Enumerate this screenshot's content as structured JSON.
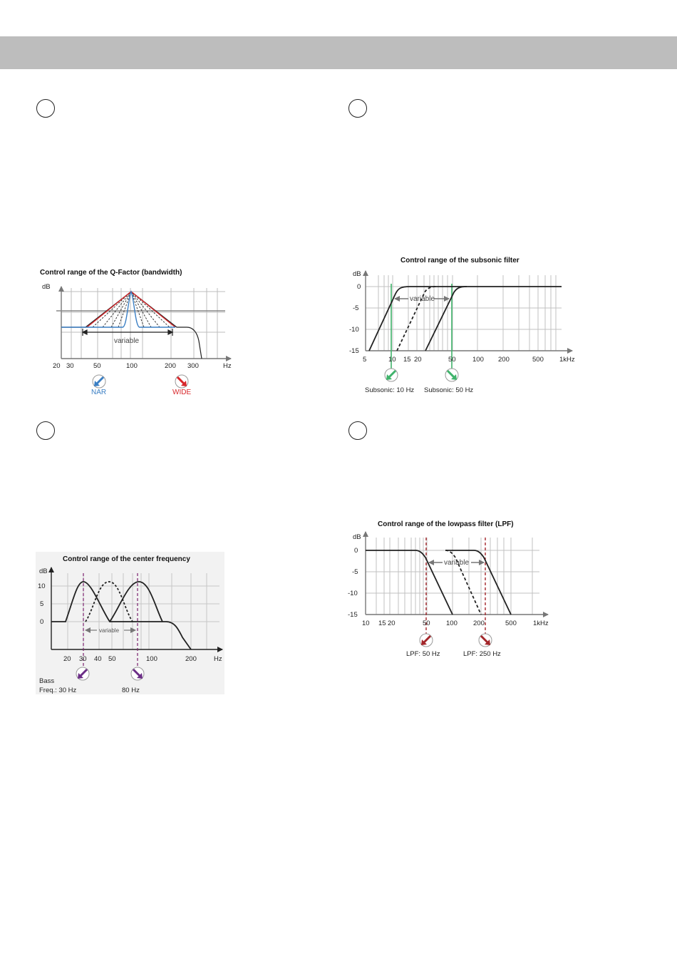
{
  "header": {
    "color": "#bdbdbd"
  },
  "steps": [
    "step-1",
    "step-2",
    "step-3",
    "step-4"
  ],
  "colors": {
    "accent_blue": "#3b7fc4",
    "accent_red": "#d8262a",
    "accent_green": "#3fb36b",
    "accent_purple": "#6b2d86",
    "accent_darkred": "#a3262a",
    "grid": "#b9b9b9"
  },
  "charts": {
    "qfactor": {
      "title": "Control range of the Q-Factor (bandwidth)",
      "ylabel": "dB",
      "unit": "Hz",
      "xticks": [
        "20",
        "30",
        "50",
        "100",
        "200",
        "300"
      ],
      "variable_label": "variable",
      "nar_label": "NAR",
      "wide_label": "WIDE"
    },
    "subsonic": {
      "title": "Control range of the subsonic filter",
      "ylabel": "dB",
      "yticks": [
        "0",
        "-5",
        "-10",
        "-15"
      ],
      "xticks": [
        "5",
        "10",
        "15",
        "20",
        "50",
        "100",
        "200",
        "500",
        "1kHz"
      ],
      "variable_label": "variable",
      "left_caption": "Subsonic: 10 Hz",
      "right_caption": "Subsonic: 50 Hz"
    },
    "center": {
      "title": "Control range of the center frequency",
      "ylabel": "dB",
      "yticks": [
        "10",
        "5",
        "0"
      ],
      "xticks": [
        "20",
        "30",
        "40",
        "50",
        "100",
        "200"
      ],
      "unit": "Hz",
      "variable_label": "variable",
      "caption_line1": "Bass",
      "caption_line2": "Freq.: 30 Hz",
      "right_caption": "80 Hz"
    },
    "lpf": {
      "title": "Control range of the lowpass filter (LPF)",
      "ylabel": "dB",
      "yticks": [
        "0",
        "-5",
        "-10",
        "-15"
      ],
      "xticks": [
        "10",
        "15",
        "20",
        "50",
        "100",
        "200",
        "500",
        "1kHz"
      ],
      "variable_label": "variable",
      "left_caption": "LPF: 50 Hz",
      "right_caption": "LPF: 250 Hz"
    }
  }
}
